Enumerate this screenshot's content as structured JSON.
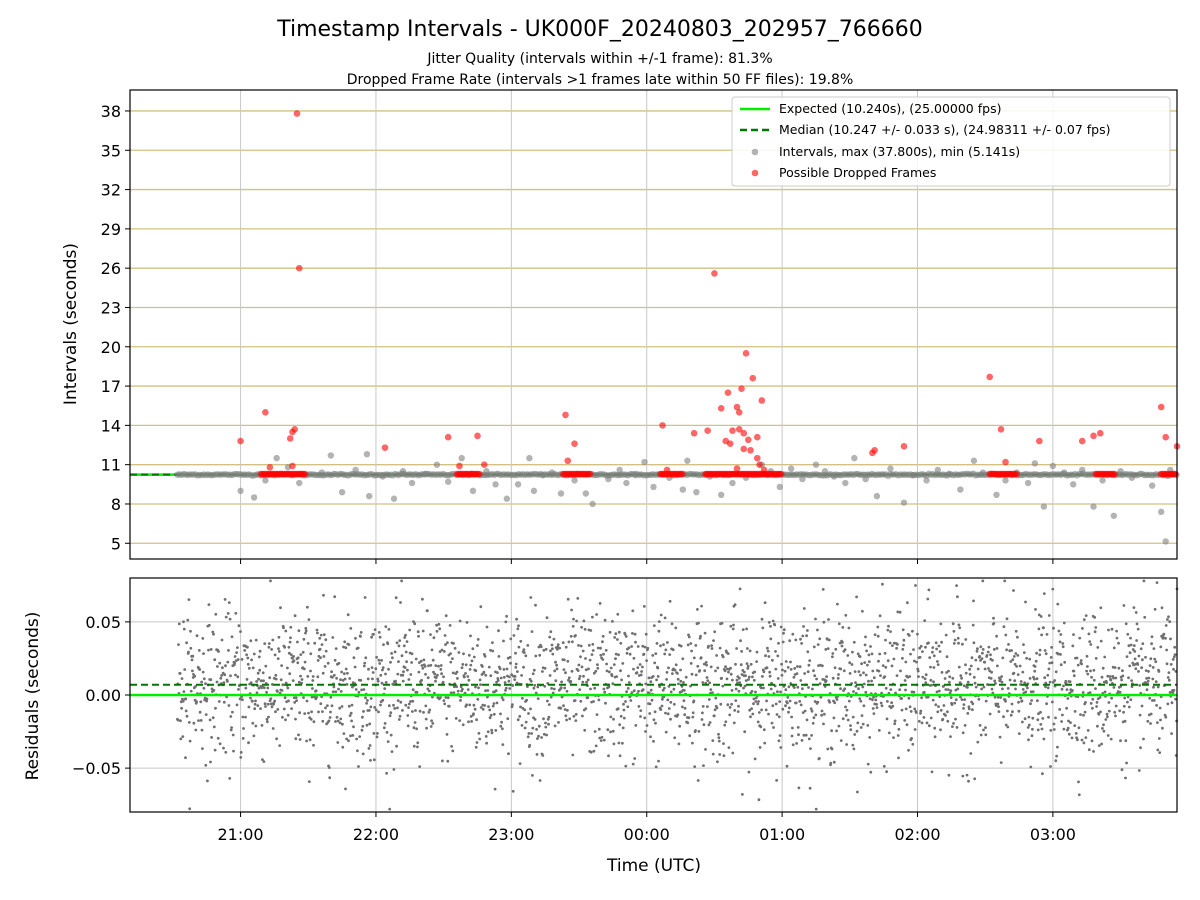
{
  "chart_data": {
    "title": "Timestamp Intervals - UK000F_20240803_202957_766660",
    "subtitle_lines": [
      "Jitter Quality (intervals within +/-1 frame): 81.3%",
      "Dropped Frame Rate (intervals >1 frames late within 50 FF files): 19.8%"
    ],
    "xlabel": "Time (UTC)",
    "x_tick_labels": [
      "21:00",
      "22:00",
      "23:00",
      "00:00",
      "01:00",
      "02:00",
      "03:00"
    ],
    "x_range": [
      "20:11",
      "03:55"
    ],
    "panels": [
      {
        "type": "scatter",
        "ylabel": "Intervals (seconds)",
        "ylim": [
          3.8,
          39.6
        ],
        "y_ticks": [
          5,
          8,
          11,
          14,
          17,
          20,
          23,
          26,
          29,
          32,
          35,
          38
        ],
        "y_tick_labels": [
          "5",
          "8",
          "11",
          "14",
          "17",
          "20",
          "23",
          "26",
          "29",
          "32",
          "35",
          "38"
        ],
        "grid": "horizontal gold lines, vertical grey lines",
        "legend_position": "top-right",
        "legend": [
          {
            "label": "Expected (10.240s), (25.00000 fps)",
            "style": "solid-line",
            "color": "#00ee00"
          },
          {
            "label": "Median (10.247 +/- 0.033 s), (24.98311 +/- 0.07 fps)",
            "style": "dashed-line",
            "color": "#007700"
          },
          {
            "label": "Intervals, max (37.800s), min (5.141s)",
            "style": "marker",
            "color": "#808080"
          },
          {
            "label": "Possible Dropped Frames",
            "style": "marker",
            "color": "#ff0000"
          }
        ],
        "expected": 10.24,
        "median": 10.247,
        "series": [
          {
            "name": "Intervals, max (37.800s), min (5.141s)",
            "color": "#808080",
            "points": [
              [
                "21:00",
                9.0
              ],
              [
                "21:06",
                8.5
              ],
              [
                "21:11",
                9.8
              ],
              [
                "21:16",
                11.5
              ],
              [
                "21:21",
                10.8
              ],
              [
                "21:26",
                9.6
              ],
              [
                "21:36",
                10.4
              ],
              [
                "21:40",
                11.7
              ],
              [
                "21:45",
                8.9
              ],
              [
                "21:51",
                10.6
              ],
              [
                "21:56",
                11.8
              ],
              [
                "21:57",
                8.6
              ],
              [
                "22:03",
                10.1
              ],
              [
                "22:08",
                8.4
              ],
              [
                "22:12",
                10.5
              ],
              [
                "22:16",
                9.6
              ],
              [
                "22:22",
                10.3
              ],
              [
                "22:27",
                11.0
              ],
              [
                "22:32",
                9.7
              ],
              [
                "22:38",
                11.5
              ],
              [
                "22:43",
                9.0
              ],
              [
                "22:49",
                10.5
              ],
              [
                "22:53",
                9.5
              ],
              [
                "22:58",
                8.4
              ],
              [
                "23:03",
                9.5
              ],
              [
                "23:08",
                11.5
              ],
              [
                "23:10",
                9.0
              ],
              [
                "23:14",
                10.2
              ],
              [
                "23:18",
                10.4
              ],
              [
                "23:22",
                8.8
              ],
              [
                "23:28",
                9.8
              ],
              [
                "23:33",
                8.8
              ],
              [
                "23:36",
                8.0
              ],
              [
                "23:43",
                9.9
              ],
              [
                "23:48",
                10.6
              ],
              [
                "23:51",
                9.6
              ],
              [
                "23:55",
                10.2
              ],
              [
                "23:59",
                11.2
              ],
              [
                "00:03",
                9.3
              ],
              [
                "00:10",
                10.0
              ],
              [
                "00:16",
                9.1
              ],
              [
                "00:18",
                11.3
              ],
              [
                "00:22",
                8.9
              ],
              [
                "00:28",
                10.1
              ],
              [
                "00:33",
                8.7
              ],
              [
                "00:38",
                9.6
              ],
              [
                "00:44",
                10.0
              ],
              [
                "00:51",
                11.0
              ],
              [
                "00:55",
                10.5
              ],
              [
                "00:59",
                9.3
              ],
              [
                "01:04",
                10.7
              ],
              [
                "01:09",
                9.9
              ],
              [
                "01:15",
                11.0
              ],
              [
                "01:19",
                10.5
              ],
              [
                "01:23",
                10.1
              ],
              [
                "01:28",
                9.6
              ],
              [
                "01:32",
                11.5
              ],
              [
                "01:37",
                9.9
              ],
              [
                "01:42",
                8.6
              ],
              [
                "01:48",
                10.7
              ],
              [
                "01:54",
                8.1
              ],
              [
                "01:58",
                10.2
              ],
              [
                "02:04",
                9.8
              ],
              [
                "02:09",
                10.6
              ],
              [
                "02:14",
                10.3
              ],
              [
                "02:19",
                9.1
              ],
              [
                "02:25",
                11.3
              ],
              [
                "02:29",
                10.4
              ],
              [
                "02:35",
                8.7
              ],
              [
                "02:39",
                9.8
              ],
              [
                "02:44",
                10.4
              ],
              [
                "02:49",
                9.6
              ],
              [
                "02:52",
                11.1
              ],
              [
                "02:56",
                7.8
              ],
              [
                "03:00",
                10.9
              ],
              [
                "03:05",
                10.4
              ],
              [
                "03:09",
                9.5
              ],
              [
                "03:13",
                10.6
              ],
              [
                "03:18",
                7.8
              ],
              [
                "03:22",
                9.8
              ],
              [
                "03:27",
                7.1
              ],
              [
                "03:30",
                10.5
              ],
              [
                "03:35",
                10.0
              ],
              [
                "03:44",
                9.4
              ],
              [
                "03:48",
                7.4
              ],
              [
                "03:50",
                5.141
              ],
              [
                "03:52",
                10.6
              ]
            ]
          },
          {
            "name": "Possible Dropped Frames",
            "color": "#ff0000",
            "points": [
              [
                "21:00",
                12.8
              ],
              [
                "21:11",
                15.0
              ],
              [
                "21:13",
                10.8
              ],
              [
                "21:22",
                13.0
              ],
              [
                "21:23",
                13.5
              ],
              [
                "21:24",
                13.7
              ],
              [
                "21:25",
                37.8
              ],
              [
                "21:26",
                26.0
              ],
              [
                "21:23",
                10.9
              ],
              [
                "22:04",
                12.3
              ],
              [
                "22:32",
                13.1
              ],
              [
                "22:37",
                10.9
              ],
              [
                "22:45",
                13.2
              ],
              [
                "22:48",
                11.0
              ],
              [
                "23:24",
                14.8
              ],
              [
                "23:25",
                11.3
              ],
              [
                "23:28",
                12.6
              ],
              [
                "00:07",
                14.0
              ],
              [
                "00:09",
                10.6
              ],
              [
                "00:21",
                13.4
              ],
              [
                "00:30",
                25.6
              ],
              [
                "00:27",
                13.6
              ],
              [
                "00:33",
                15.3
              ],
              [
                "00:35",
                12.8
              ],
              [
                "00:36",
                16.5
              ],
              [
                "00:37",
                12.6
              ],
              [
                "00:38",
                13.6
              ],
              [
                "00:40",
                10.7
              ],
              [
                "00:40",
                15.4
              ],
              [
                "00:41",
                13.7
              ],
              [
                "00:41",
                15.0
              ],
              [
                "00:42",
                16.8
              ],
              [
                "00:43",
                12.2
              ],
              [
                "00:43",
                13.4
              ],
              [
                "00:44",
                19.5
              ],
              [
                "00:45",
                12.9
              ],
              [
                "00:46",
                12.1
              ],
              [
                "00:47",
                17.6
              ],
              [
                "00:49",
                13.1
              ],
              [
                "00:49",
                11.5
              ],
              [
                "00:50",
                11.0
              ],
              [
                "00:51",
                15.9
              ],
              [
                "00:52",
                10.6
              ],
              [
                "01:40",
                11.9
              ],
              [
                "01:41",
                12.1
              ],
              [
                "01:54",
                12.4
              ],
              [
                "02:32",
                17.7
              ],
              [
                "02:37",
                13.7
              ],
              [
                "02:39",
                11.2
              ],
              [
                "02:54",
                12.8
              ],
              [
                "03:13",
                12.8
              ],
              [
                "03:18",
                13.2
              ],
              [
                "03:21",
                13.4
              ],
              [
                "03:48",
                15.4
              ],
              [
                "03:50",
                13.1
              ],
              [
                "03:55",
                12.4
              ]
            ],
            "clusters_at_about_10_25": [
              [
                "21:09",
                "21:29"
              ],
              [
                "22:36",
                "22:46"
              ],
              [
                "23:23",
                "23:35"
              ],
              [
                "00:06",
                "00:16"
              ],
              [
                "00:26",
                "01:00"
              ],
              [
                "02:32",
                "02:44"
              ],
              [
                "03:19",
                "03:28"
              ],
              [
                "03:48",
                "03:55"
              ]
            ]
          }
        ]
      },
      {
        "type": "scatter",
        "ylabel": "Residuals (seconds)",
        "ylim": [
          -0.08,
          0.08
        ],
        "y_ticks": [
          0.05,
          0.0,
          -0.05
        ],
        "y_tick_labels": [
          "0.05",
          "0.00",
          "−0.05"
        ],
        "grid": "horizontal and vertical grey lines",
        "expected": 0.0,
        "median": 0.007,
        "series": [
          {
            "name": "Residuals",
            "color": "#707070",
            "x_range": [
              "20:32",
              "03:55"
            ],
            "approx_count": 2600,
            "value_range": [
              -0.078,
              0.078
            ],
            "approx_spread": 0.025
          }
        ]
      }
    ]
  }
}
